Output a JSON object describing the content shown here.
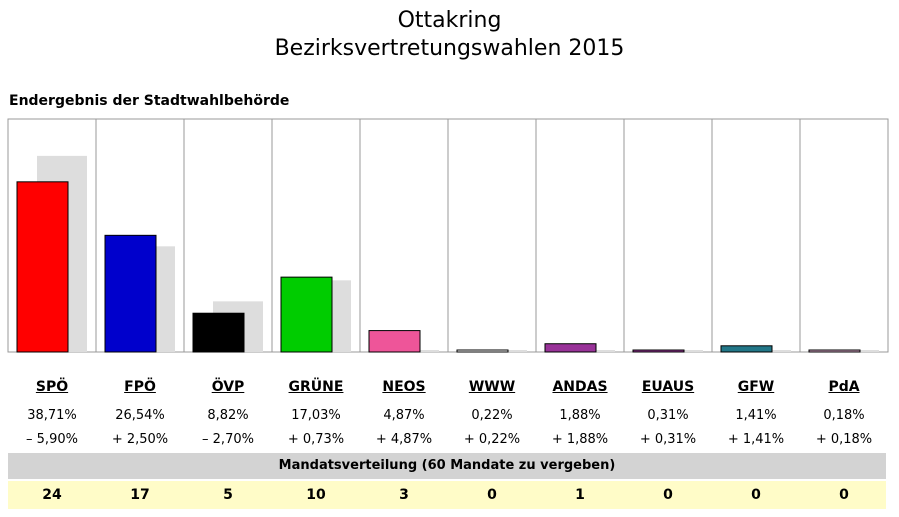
{
  "header": {
    "title_line1": "Ottakring",
    "title_line2": "Bezirksvertretungswahlen 2015",
    "subtitle": "Endergebnis der Stadtwahlbehörde"
  },
  "chart_data": {
    "type": "bar",
    "categories": [
      "SPÖ",
      "FPÖ",
      "ÖVP",
      "GRÜNE",
      "NEOS",
      "WWW",
      "ANDAS",
      "EUAUS",
      "GFW",
      "PdA"
    ],
    "series": [
      {
        "values": [
          38.71,
          26.54,
          8.82,
          17.03,
          4.87,
          0.22,
          1.88,
          0.31,
          1.41,
          0.18
        ],
        "colors": [
          "#ff0000",
          "#0000cc",
          "#000000",
          "#00cc00",
          "#ee5599",
          "#ffffff",
          "#993399",
          "#993399",
          "#227788",
          "#d8a8c8"
        ]
      },
      {
        "values": [
          44.61,
          24.04,
          11.52,
          16.3,
          0.0,
          0.0,
          0.0,
          0.0,
          0.0,
          0.0
        ],
        "color": "#dddddd"
      }
    ],
    "ylim": [
      0,
      53
    ]
  },
  "results": {
    "percent": [
      "38,71%",
      "26,54%",
      "8,82%",
      "17,03%",
      "4,87%",
      "0,22%",
      "1,88%",
      "0,31%",
      "1,41%",
      "0,18%"
    ],
    "change": [
      "– 5,90%",
      "+ 2,50%",
      "– 2,70%",
      "+ 0,73%",
      "+ 4,87%",
      "+ 0,22%",
      "+ 1,88%",
      "+ 0,31%",
      "+ 1,41%",
      "+ 0,18%"
    ]
  },
  "seats": {
    "header": "Mandatsverteilung (60 Mandate zu vergeben)",
    "values": [
      "24",
      "17",
      "5",
      "10",
      "3",
      "0",
      "1",
      "0",
      "0",
      "0"
    ]
  }
}
